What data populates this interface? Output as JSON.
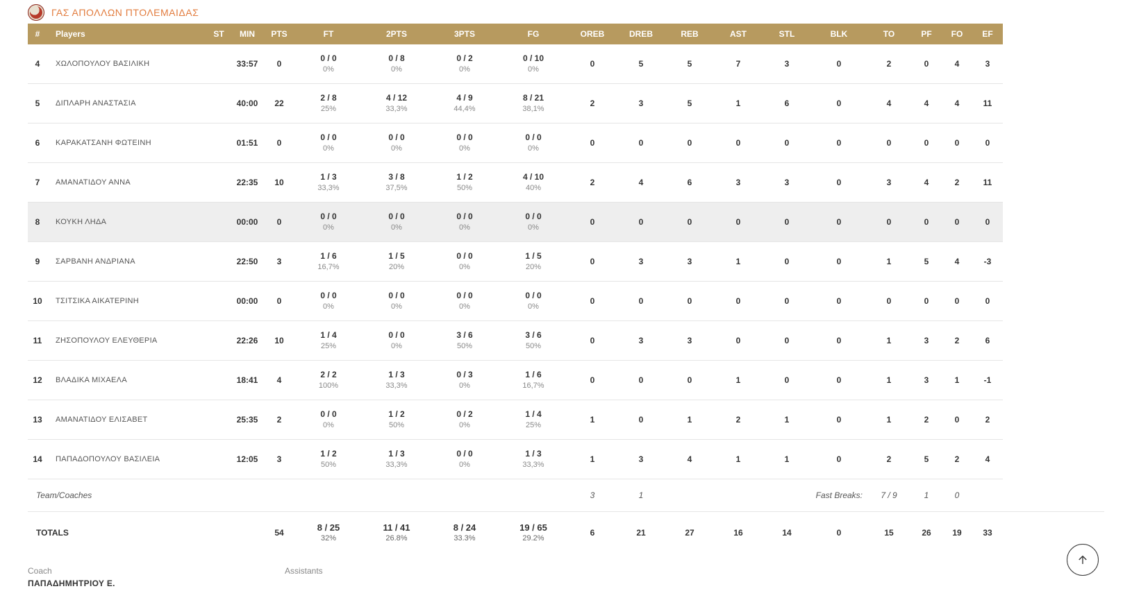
{
  "colors": {
    "accent": "#e27c3e",
    "header_bg": "#b79a5f",
    "header_fg": "#ffffff",
    "row_border": "#e5e5e5",
    "highlight_bg": "#eeeeee",
    "muted": "#888888"
  },
  "team": {
    "name": "ΓΑΣ ΑΠΟΛΛΩΝ ΠΤΟΛΕΜΑΙΔΑΣ"
  },
  "columns": [
    "#",
    "Players",
    "ST",
    "MIN",
    "PTS",
    "FT",
    "2PTS",
    "3PTS",
    "FG",
    "OREB",
    "DREB",
    "REB",
    "AST",
    "STL",
    "BLK",
    "TO",
    "PF",
    "FO",
    "EF"
  ],
  "players": [
    {
      "num": "4",
      "name": "ΧΩΛΟΠΟΥΛΟΥ ΒΑΣΙΛΙΚΗ",
      "st": "",
      "min": "33:57",
      "pts": "0",
      "ft": {
        "v": "0 / 0",
        "p": "0%"
      },
      "p2": {
        "v": "0 / 8",
        "p": "0%"
      },
      "p3": {
        "v": "0 / 2",
        "p": "0%"
      },
      "fg": {
        "v": "0 / 10",
        "p": "0%"
      },
      "oreb": "0",
      "dreb": "5",
      "reb": "5",
      "ast": "7",
      "stl": "3",
      "blk": "0",
      "to": "2",
      "pf": "0",
      "fo": "4",
      "ef": "3",
      "hl": false
    },
    {
      "num": "5",
      "name": "ΔΙΠΛΑΡΗ ΑΝΑΣΤΑΣΙΑ",
      "st": "",
      "min": "40:00",
      "pts": "22",
      "ft": {
        "v": "2 / 8",
        "p": "25%"
      },
      "p2": {
        "v": "4 / 12",
        "p": "33,3%"
      },
      "p3": {
        "v": "4 / 9",
        "p": "44,4%"
      },
      "fg": {
        "v": "8 / 21",
        "p": "38,1%"
      },
      "oreb": "2",
      "dreb": "3",
      "reb": "5",
      "ast": "1",
      "stl": "6",
      "blk": "0",
      "to": "4",
      "pf": "4",
      "fo": "4",
      "ef": "11",
      "hl": false
    },
    {
      "num": "6",
      "name": "ΚΑΡΑΚΑΤΣΑΝΗ ΦΩΤΕΙΝΗ",
      "st": "",
      "min": "01:51",
      "pts": "0",
      "ft": {
        "v": "0 / 0",
        "p": "0%"
      },
      "p2": {
        "v": "0 / 0",
        "p": "0%"
      },
      "p3": {
        "v": "0 / 0",
        "p": "0%"
      },
      "fg": {
        "v": "0 / 0",
        "p": "0%"
      },
      "oreb": "0",
      "dreb": "0",
      "reb": "0",
      "ast": "0",
      "stl": "0",
      "blk": "0",
      "to": "0",
      "pf": "0",
      "fo": "0",
      "ef": "0",
      "hl": false
    },
    {
      "num": "7",
      "name": "ΑΜΑΝΑΤΙΔΟΥ ΑΝΝΑ",
      "st": "",
      "min": "22:35",
      "pts": "10",
      "ft": {
        "v": "1 / 3",
        "p": "33,3%"
      },
      "p2": {
        "v": "3 / 8",
        "p": "37,5%"
      },
      "p3": {
        "v": "1 / 2",
        "p": "50%"
      },
      "fg": {
        "v": "4 / 10",
        "p": "40%"
      },
      "oreb": "2",
      "dreb": "4",
      "reb": "6",
      "ast": "3",
      "stl": "3",
      "blk": "0",
      "to": "3",
      "pf": "4",
      "fo": "2",
      "ef": "11",
      "hl": false
    },
    {
      "num": "8",
      "name": "ΚΟΥΚΗ ΛΗΔΑ",
      "st": "",
      "min": "00:00",
      "pts": "0",
      "ft": {
        "v": "0 / 0",
        "p": "0%"
      },
      "p2": {
        "v": "0 / 0",
        "p": "0%"
      },
      "p3": {
        "v": "0 / 0",
        "p": "0%"
      },
      "fg": {
        "v": "0 / 0",
        "p": "0%"
      },
      "oreb": "0",
      "dreb": "0",
      "reb": "0",
      "ast": "0",
      "stl": "0",
      "blk": "0",
      "to": "0",
      "pf": "0",
      "fo": "0",
      "ef": "0",
      "hl": true
    },
    {
      "num": "9",
      "name": "ΣΑΡΒΑΝΗ ΑΝΔΡΙΑΝΑ",
      "st": "",
      "min": "22:50",
      "pts": "3",
      "ft": {
        "v": "1 / 6",
        "p": "16,7%"
      },
      "p2": {
        "v": "1 / 5",
        "p": "20%"
      },
      "p3": {
        "v": "0 / 0",
        "p": "0%"
      },
      "fg": {
        "v": "1 / 5",
        "p": "20%"
      },
      "oreb": "0",
      "dreb": "3",
      "reb": "3",
      "ast": "1",
      "stl": "0",
      "blk": "0",
      "to": "1",
      "pf": "5",
      "fo": "4",
      "ef": "-3",
      "hl": false
    },
    {
      "num": "10",
      "name": "ΤΣΙΤΣΙΚΑ ΑΙΚΑΤΕΡΙΝΗ",
      "st": "",
      "min": "00:00",
      "pts": "0",
      "ft": {
        "v": "0 / 0",
        "p": "0%"
      },
      "p2": {
        "v": "0 / 0",
        "p": "0%"
      },
      "p3": {
        "v": "0 / 0",
        "p": "0%"
      },
      "fg": {
        "v": "0 / 0",
        "p": "0%"
      },
      "oreb": "0",
      "dreb": "0",
      "reb": "0",
      "ast": "0",
      "stl": "0",
      "blk": "0",
      "to": "0",
      "pf": "0",
      "fo": "0",
      "ef": "0",
      "hl": false
    },
    {
      "num": "11",
      "name": "ΖΗΣΟΠΟΥΛΟΥ ΕΛΕΥΘΕΡΙΑ",
      "st": "",
      "min": "22:26",
      "pts": "10",
      "ft": {
        "v": "1 / 4",
        "p": "25%"
      },
      "p2": {
        "v": "0 / 0",
        "p": "0%"
      },
      "p3": {
        "v": "3 / 6",
        "p": "50%"
      },
      "fg": {
        "v": "3 / 6",
        "p": "50%"
      },
      "oreb": "0",
      "dreb": "3",
      "reb": "3",
      "ast": "0",
      "stl": "0",
      "blk": "0",
      "to": "1",
      "pf": "3",
      "fo": "2",
      "ef": "6",
      "hl": false
    },
    {
      "num": "12",
      "name": "ΒΛΑΔΙΚΑ ΜΙΧΑΕΛΑ",
      "st": "",
      "min": "18:41",
      "pts": "4",
      "ft": {
        "v": "2 / 2",
        "p": "100%"
      },
      "p2": {
        "v": "1 / 3",
        "p": "33,3%"
      },
      "p3": {
        "v": "0 / 3",
        "p": "0%"
      },
      "fg": {
        "v": "1 / 6",
        "p": "16,7%"
      },
      "oreb": "0",
      "dreb": "0",
      "reb": "0",
      "ast": "1",
      "stl": "0",
      "blk": "0",
      "to": "1",
      "pf": "3",
      "fo": "1",
      "ef": "-1",
      "hl": false
    },
    {
      "num": "13",
      "name": "ΑΜΑΝΑΤΙΔΟΥ ΕΛΙΣΑΒΕΤ",
      "st": "",
      "min": "25:35",
      "pts": "2",
      "ft": {
        "v": "0 / 0",
        "p": "0%"
      },
      "p2": {
        "v": "1 / 2",
        "p": "50%"
      },
      "p3": {
        "v": "0 / 2",
        "p": "0%"
      },
      "fg": {
        "v": "1 / 4",
        "p": "25%"
      },
      "oreb": "1",
      "dreb": "0",
      "reb": "1",
      "ast": "2",
      "stl": "1",
      "blk": "0",
      "to": "1",
      "pf": "2",
      "fo": "0",
      "ef": "2",
      "hl": false
    },
    {
      "num": "14",
      "name": "ΠΑΠΑΔΟΠΟΥΛΟΥ ΒΑΣΙΛΕΙΑ",
      "st": "",
      "min": "12:05",
      "pts": "3",
      "ft": {
        "v": "1 / 2",
        "p": "50%"
      },
      "p2": {
        "v": "1 / 3",
        "p": "33,3%"
      },
      "p3": {
        "v": "0 / 0",
        "p": "0%"
      },
      "fg": {
        "v": "1 / 3",
        "p": "33,3%"
      },
      "oreb": "1",
      "dreb": "3",
      "reb": "4",
      "ast": "1",
      "stl": "1",
      "blk": "0",
      "to": "2",
      "pf": "5",
      "fo": "2",
      "ef": "4",
      "hl": false
    }
  ],
  "teamcoaches": {
    "label": "Team/Coaches",
    "oreb": "3",
    "dreb": "1",
    "fast_breaks_label": "Fast Breaks:",
    "fast_breaks_value": "7 / 9",
    "to": "1",
    "pf": "0"
  },
  "totals": {
    "label": "TOTALS",
    "pts": "54",
    "ft": {
      "v": "8 / 25",
      "p": "32%"
    },
    "p2": {
      "v": "11 / 41",
      "p": "26.8%"
    },
    "p3": {
      "v": "8 / 24",
      "p": "33.3%"
    },
    "fg": {
      "v": "19 / 65",
      "p": "29.2%"
    },
    "oreb": "6",
    "dreb": "21",
    "reb": "27",
    "ast": "16",
    "stl": "14",
    "blk": "0",
    "to": "15",
    "pf": "26",
    "fo": "19",
    "ef": "33"
  },
  "footer": {
    "coach_label": "Coach",
    "coach_name": "ΠΑΠΑΔΗΜΗΤΡΙΟΥ Ε.",
    "assistants_label": "Assistants"
  }
}
